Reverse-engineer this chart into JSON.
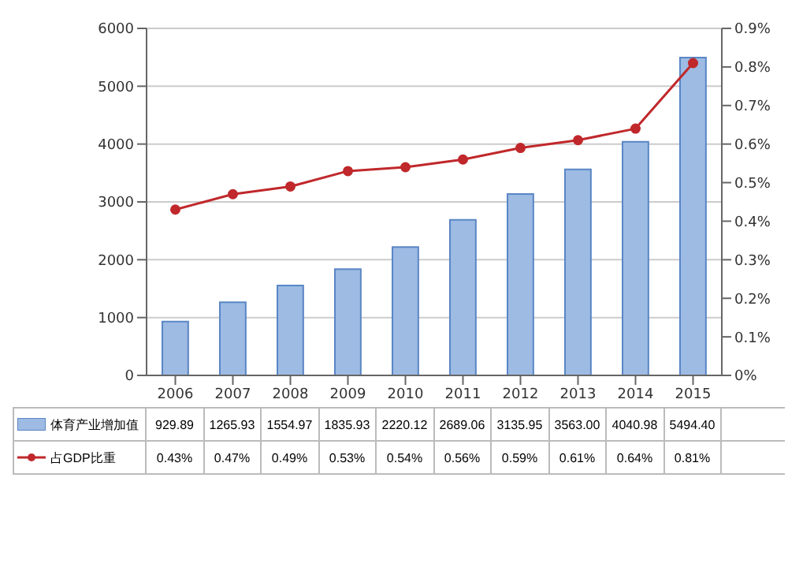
{
  "chart_data": {
    "type": "bar",
    "categories": [
      "2006",
      "2007",
      "2008",
      "2009",
      "2010",
      "2011",
      "2012",
      "2013",
      "2014",
      "2015"
    ],
    "series": [
      {
        "name": "体育产业增加值",
        "color": "#9dbbe3",
        "values": [
          929.89,
          1265.93,
          1554.97,
          1835.93,
          2220.12,
          2689.06,
          3135.95,
          3563,
          4040.98,
          5494.4
        ],
        "value_labels": [
          "929.89",
          "1265.93",
          "1554.97",
          "1835.93",
          "2220.12",
          "2689.06",
          "3135.95",
          "3563.00",
          "4040.98",
          "5494.40"
        ]
      },
      {
        "name": "占GDP比重",
        "type": "line",
        "axis": "y2",
        "color": "#c0282b",
        "values": [
          0.43,
          0.47,
          0.49,
          0.53,
          0.54,
          0.56,
          0.59,
          0.61,
          0.64,
          0.81
        ],
        "value_labels": [
          "0.43%",
          "0.47%",
          "0.49%",
          "0.53%",
          "0.54%",
          "0.56%",
          "0.59%",
          "0.61%",
          "0.64%",
          "0.81%"
        ]
      }
    ],
    "ylim": [
      0,
      6000
    ],
    "yticks": [
      0,
      1000,
      2000,
      3000,
      4000,
      5000,
      6000
    ],
    "y2lim": [
      0,
      0.9
    ],
    "y2ticks": [
      {
        "value": 0,
        "label": "0%"
      },
      {
        "value": 0.1,
        "label": "0.1%"
      },
      {
        "value": 0.2,
        "label": "0.2%"
      },
      {
        "value": 0.3,
        "label": "0.3%"
      },
      {
        "value": 0.4,
        "label": "0.4%"
      },
      {
        "value": 0.5,
        "label": "0.5%"
      },
      {
        "value": 0.6,
        "label": "0.6%"
      },
      {
        "value": 0.7,
        "label": "0.7%"
      },
      {
        "value": 0.8,
        "label": "0.8%"
      },
      {
        "value": 0.9,
        "label": "0.9%"
      }
    ],
    "grid": "y",
    "legend": "bottom",
    "marker": "circle",
    "line_style": "solid"
  }
}
